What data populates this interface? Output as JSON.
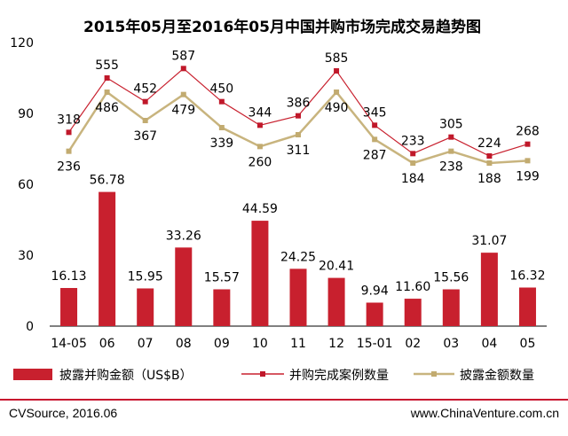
{
  "colors": {
    "bar": "#c8202e",
    "count_line": "#c8202e",
    "count_marker": "#c0182a",
    "amount_line": "#c8b47e",
    "amount_marker": "#c2ab70",
    "footer_line": "#c8102e"
  },
  "footer": {
    "source": "CVSource, 2016.06",
    "website": "www.ChinaVenture.com.cn"
  },
  "chart_data": {
    "type": "bar",
    "title": "2015年05月至2016年05月中国并购市场完成交易趋势图",
    "xlabel": "",
    "ylabel": "",
    "ylim": [
      0,
      120
    ],
    "yticks": [
      0,
      30,
      60,
      90,
      120
    ],
    "categories": [
      "14-05",
      "06",
      "07",
      "08",
      "09",
      "10",
      "11",
      "12",
      "15-01",
      "02",
      "03",
      "04",
      "05"
    ],
    "bar_labels": [
      "16.13",
      "56.78",
      "15.95",
      "33.26",
      "15.57",
      "44.59",
      "24.25",
      "20.41",
      "9.94",
      "11.60",
      "15.56",
      "31.07",
      "16.32"
    ],
    "series": [
      {
        "name": "披露并购金额（US$B）",
        "type": "bar",
        "values": [
          16.13,
          56.78,
          15.95,
          33.26,
          15.57,
          44.59,
          24.25,
          20.41,
          9.94,
          11.6,
          15.56,
          31.07,
          16.32
        ]
      },
      {
        "name": "并购完成案例数量",
        "type": "line",
        "labels": [
          318,
          555,
          452,
          587,
          450,
          344,
          386,
          585,
          345,
          233,
          305,
          224,
          268
        ],
        "values": [
          82,
          105,
          95,
          109,
          95,
          85,
          89,
          108,
          85,
          73,
          80,
          72,
          77
        ]
      },
      {
        "name": "披露金额数量",
        "type": "line",
        "labels": [
          236,
          486,
          367,
          479,
          339,
          260,
          311,
          490,
          287,
          184,
          238,
          188,
          199
        ],
        "values": [
          74,
          99,
          87,
          98,
          84,
          76,
          81,
          99,
          79,
          69,
          74,
          69,
          70
        ]
      }
    ],
    "legend_position": "bottom"
  }
}
